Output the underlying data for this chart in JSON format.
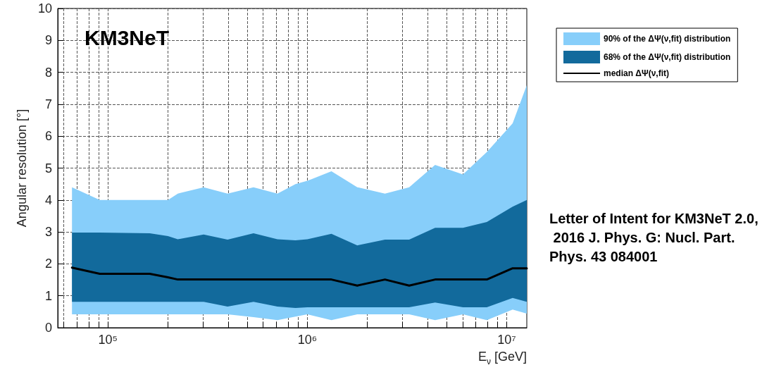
{
  "chart_data": {
    "type": "line",
    "xlabel": "E$_{ν}$ [GeV]",
    "ylabel": "Angular resolution [°]",
    "log": "x",
    "x": [
      66000,
      91000,
      162000,
      200000,
      224000,
      302000,
      398000,
      537000,
      708000,
      871000,
      1000000,
      1320000,
      1780000,
      2450000,
      3240000,
      4370000,
      6030000,
      7940000,
      10700000,
      12600000
    ],
    "series": [
      {
        "name": "90% of the ΔΨ(ν,fit) distribution",
        "type": "line",
        "color": "#87cefa",
        "values": [
          null,
          null,
          null,
          null,
          null,
          null,
          null,
          null,
          null,
          null,
          null,
          null,
          null,
          null,
          null,
          null,
          null,
          null,
          null,
          null
        ],
        "lower": [
          0.42,
          0.42,
          0.42,
          0.42,
          0.42,
          0.42,
          0.42,
          0.33,
          0.24,
          0.35,
          0.42,
          0.24,
          0.42,
          0.42,
          0.42,
          0.24,
          0.42,
          0.24,
          0.57,
          0.44
        ],
        "upper": [
          4.4,
          4.0,
          4.0,
          4.0,
          4.2,
          4.4,
          4.2,
          4.4,
          4.2,
          4.5,
          4.6,
          4.9,
          4.4,
          4.2,
          4.4,
          5.1,
          4.8,
          5.5,
          6.4,
          7.6
        ]
      },
      {
        "name": "68% of the ΔΨ(ν,fit) distribution",
        "type": "line",
        "color": "#126a9c",
        "values": [
          null,
          null,
          null,
          null,
          null,
          null,
          null,
          null,
          null,
          null,
          null,
          null,
          null,
          null,
          null,
          null,
          null,
          null,
          null,
          null
        ],
        "lower": [
          0.81,
          0.81,
          0.81,
          0.81,
          0.81,
          0.81,
          0.66,
          0.81,
          0.66,
          0.62,
          0.64,
          0.64,
          0.64,
          0.64,
          0.64,
          0.79,
          0.64,
          0.64,
          0.93,
          0.81
        ],
        "upper": [
          2.98,
          2.98,
          2.96,
          2.87,
          2.77,
          2.92,
          2.76,
          2.96,
          2.77,
          2.74,
          2.77,
          2.94,
          2.58,
          2.76,
          2.76,
          3.13,
          3.13,
          3.31,
          3.79,
          4.0
        ]
      },
      {
        "name": "median ΔΨ(ν,fit)",
        "type": "line",
        "color": "#000000",
        "values": [
          1.88,
          1.69,
          1.69,
          1.58,
          1.51,
          1.51,
          1.51,
          1.51,
          1.51,
          1.51,
          1.51,
          1.51,
          1.32,
          1.51,
          1.32,
          1.51,
          1.51,
          1.51,
          1.86,
          1.86
        ]
      }
    ],
    "xlim": [
      56000,
      12600000
    ],
    "xticks": [
      {
        "value": 60000,
        "label": null
      },
      {
        "value": 70000,
        "label": null
      },
      {
        "value": 80000,
        "label": null
      },
      {
        "value": 90000,
        "label": null
      },
      {
        "value": 100000,
        "label": "10⁵"
      },
      {
        "value": 200000,
        "label": null
      },
      {
        "value": 300000,
        "label": null
      },
      {
        "value": 400000,
        "label": null
      },
      {
        "value": 500000,
        "label": null
      },
      {
        "value": 600000,
        "label": null
      },
      {
        "value": 700000,
        "label": null
      },
      {
        "value": 800000,
        "label": null
      },
      {
        "value": 900000,
        "label": null
      },
      {
        "value": 1000000,
        "label": "10⁶"
      },
      {
        "value": 2000000,
        "label": null
      },
      {
        "value": 3000000,
        "label": null
      },
      {
        "value": 4000000,
        "label": null
      },
      {
        "value": 5000000,
        "label": null
      },
      {
        "value": 6000000,
        "label": null
      },
      {
        "value": 7000000,
        "label": null
      },
      {
        "value": 8000000,
        "label": null
      },
      {
        "value": 9000000,
        "label": null
      },
      {
        "value": 10000000,
        "label": "10⁷"
      }
    ],
    "ylim": [
      0,
      10
    ],
    "yticks": [
      0,
      1,
      2,
      3,
      4,
      5,
      6,
      7,
      8,
      9,
      10
    ],
    "grid": true,
    "legend": "top right",
    "marker": "none",
    "line_style": "solid",
    "annotations": [
      "KM3NeT",
      "Letter of Intent for KM3NeT 2.0, 2016 J. Phys. G: Nucl. Part. Phys. 43 084001"
    ]
  }
}
